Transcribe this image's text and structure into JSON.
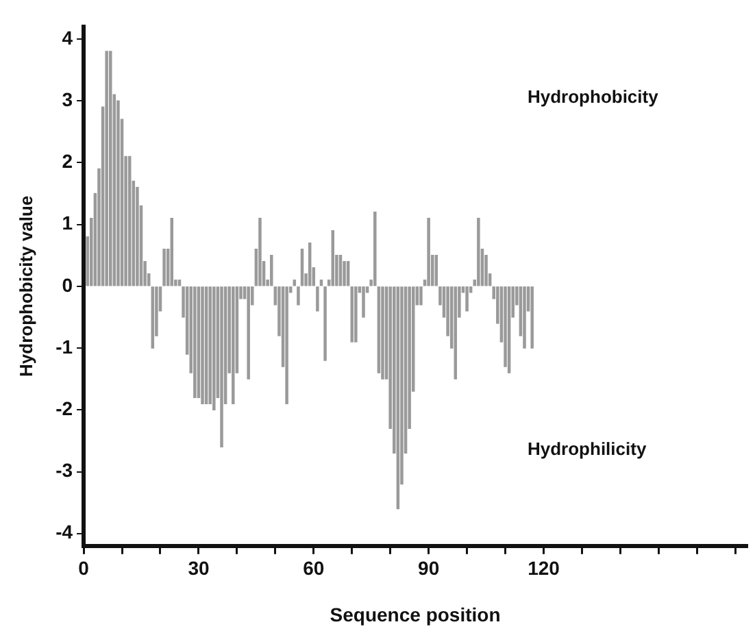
{
  "chart_data": {
    "type": "bar",
    "xlabel": "Sequence position",
    "ylabel": "Hydrophobicity value",
    "annotations": [
      "Hydrophobicity",
      "Hydrophilicity"
    ],
    "x": [
      1,
      2,
      3,
      4,
      5,
      6,
      7,
      8,
      9,
      10,
      11,
      12,
      13,
      14,
      15,
      16,
      17,
      18,
      19,
      20,
      21,
      22,
      23,
      24,
      25,
      26,
      27,
      28,
      29,
      30,
      31,
      32,
      33,
      34,
      35,
      36,
      37,
      38,
      39,
      40,
      41,
      42,
      43,
      44,
      45,
      46,
      47,
      48,
      49,
      50,
      51,
      52,
      53,
      54,
      55,
      56,
      57,
      58,
      59,
      60,
      61,
      62,
      63,
      64,
      65,
      66,
      67,
      68,
      69,
      70,
      71,
      72,
      73,
      74,
      75,
      76,
      77,
      78,
      79,
      80,
      81,
      82,
      83,
      84,
      85,
      86,
      87,
      88,
      89,
      90,
      91,
      92,
      93,
      94,
      95,
      96,
      97,
      98,
      99,
      100,
      101,
      102,
      103,
      104,
      105,
      106,
      107,
      108,
      109,
      110,
      111,
      112,
      113,
      114,
      115,
      116,
      117
    ],
    "values": [
      0.8,
      1.1,
      1.5,
      1.9,
      2.9,
      3.8,
      3.8,
      3.1,
      3.0,
      2.7,
      2.1,
      2.1,
      1.7,
      1.6,
      1.3,
      0.4,
      0.2,
      -1.0,
      -0.8,
      -0.4,
      0.6,
      0.6,
      1.1,
      0.1,
      0.1,
      -0.5,
      -1.1,
      -1.4,
      -1.8,
      -1.8,
      -1.9,
      -1.9,
      -1.9,
      -2.0,
      -1.8,
      -2.6,
      -1.9,
      -1.4,
      -1.9,
      -1.4,
      -0.2,
      -0.2,
      -1.5,
      -0.3,
      0.6,
      1.1,
      0.4,
      0.1,
      0.5,
      -0.3,
      -0.8,
      -1.3,
      -1.9,
      -0.1,
      0.1,
      -0.3,
      0.6,
      0.2,
      0.7,
      0.3,
      -0.4,
      0.1,
      -1.2,
      0.1,
      0.9,
      0.5,
      0.5,
      0.4,
      0.4,
      -0.9,
      -0.9,
      -0.1,
      -0.5,
      -0.1,
      0.1,
      1.2,
      -1.4,
      -1.5,
      -1.5,
      -2.3,
      -2.7,
      -3.6,
      -3.2,
      -2.7,
      -2.3,
      -1.7,
      -0.3,
      -0.3,
      0.1,
      1.1,
      0.5,
      0.5,
      -0.3,
      -0.5,
      -0.8,
      -1.0,
      -1.5,
      -0.5,
      -0.1,
      -0.4,
      -0.1,
      0.1,
      1.1,
      0.6,
      0.5,
      0.2,
      -0.2,
      -0.6,
      -0.9,
      -1.3,
      -1.4,
      -0.5,
      -0.3,
      -0.8,
      -1.0,
      -0.4,
      -1.0
    ],
    "color": "#9a9a9a",
    "xlim": [
      0,
      173
    ],
    "xticks": [
      0,
      {
        "value": 10,
        "label": null
      },
      {
        "value": 20,
        "label": null
      },
      30,
      {
        "value": 40,
        "label": null
      },
      {
        "value": 50,
        "label": null
      },
      60,
      {
        "value": 70,
        "label": null
      },
      {
        "value": 80,
        "label": null
      },
      90,
      {
        "value": 100,
        "label": null
      },
      {
        "value": 110,
        "label": null
      },
      120,
      {
        "value": 130,
        "label": null
      },
      {
        "value": 140,
        "label": null
      },
      {
        "value": 150,
        "label": null
      },
      {
        "value": 160,
        "label": null
      },
      {
        "value": 170,
        "label": null
      }
    ],
    "ylim": [
      -4.2,
      4.2
    ],
    "yticks": [
      -4,
      -3,
      -2,
      -1,
      0,
      1,
      2,
      3,
      4
    ],
    "grid": false,
    "legend": false
  }
}
